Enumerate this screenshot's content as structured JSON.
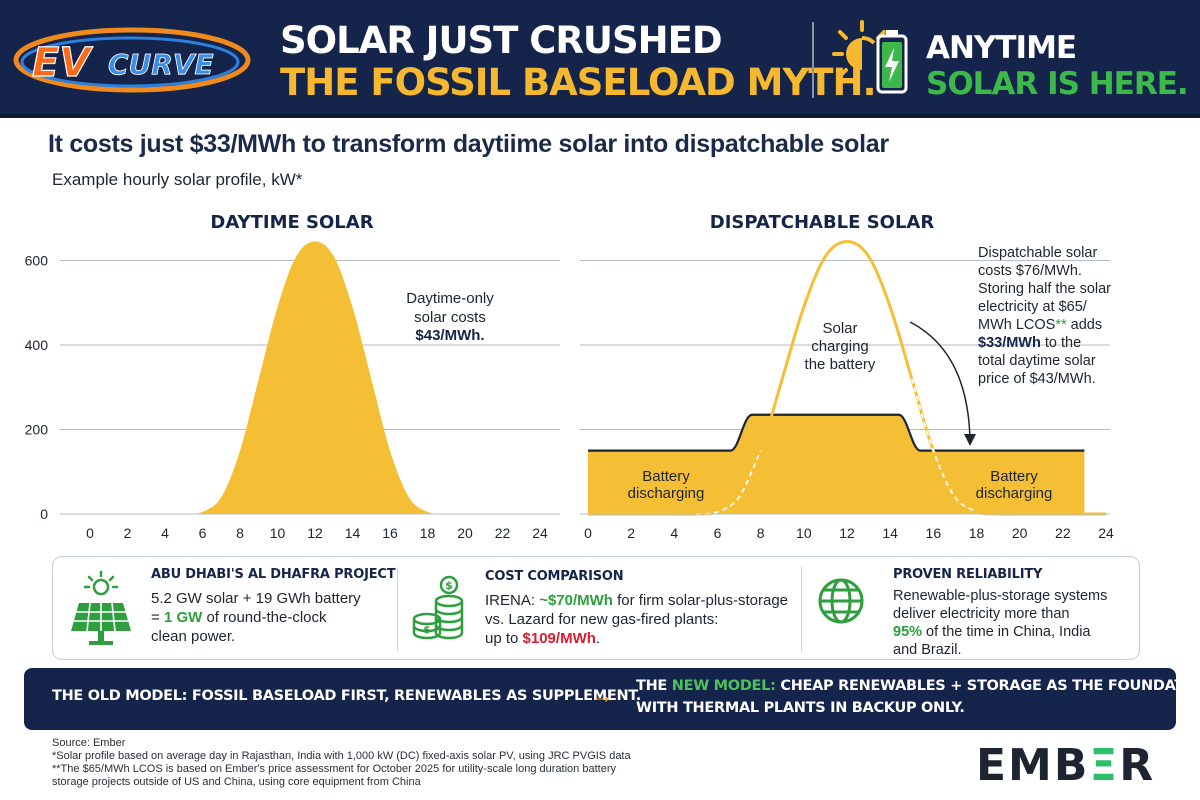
{
  "header": {
    "logo_ev": "EV",
    "logo_curve": "CURVE",
    "headline_line1": "SOLAR JUST CRUSHED",
    "headline_line2": "THE FOSSIL BASELOAD MYTH.",
    "anytime_line1": "ANYTIME",
    "anytime_line2": "SOLAR IS HERE."
  },
  "title": "It costs just $33/MWh to transform daytiime solar into dispatchable solar",
  "subtitle": "Example hourly solar profile, kW*",
  "chart_data": [
    {
      "type": "area",
      "title": "DAYTIME SOLAR",
      "x": [
        0,
        1,
        2,
        3,
        4,
        5,
        6,
        7,
        8,
        9,
        10,
        11,
        12,
        13,
        14,
        15,
        16,
        17,
        18,
        19,
        20,
        21,
        22,
        23,
        24
      ],
      "series": [
        {
          "values": [
            0,
            0,
            0,
            0,
            0,
            0,
            5,
            40,
            150,
            320,
            490,
            610,
            645,
            610,
            490,
            320,
            150,
            40,
            5,
            0,
            0,
            0,
            0,
            0,
            0
          ]
        }
      ],
      "xlim": [
        0,
        24
      ],
      "ylim": [
        0,
        700
      ],
      "yticks": [
        0,
        200,
        400,
        600
      ],
      "xticks": [
        0,
        2,
        4,
        6,
        8,
        10,
        12,
        14,
        16,
        18,
        20,
        22,
        24
      ],
      "grid": "horizontal",
      "annotation": {
        "line1": "Daytime-only",
        "line2": "solar costs",
        "line3": "$43/MWh."
      }
    },
    {
      "type": "area",
      "title": "DISPATCHABLE SOLAR",
      "x": [
        0,
        1,
        2,
        3,
        4,
        5,
        6,
        7,
        8,
        9,
        10,
        11,
        12,
        13,
        14,
        15,
        16,
        17,
        18,
        19,
        20,
        21,
        22,
        23,
        24
      ],
      "series": [
        {
          "values": [
            150,
            150,
            150,
            150,
            150,
            150,
            150,
            150,
            235,
            235,
            235,
            235,
            235,
            235,
            235,
            150,
            150,
            150,
            150,
            150,
            150,
            150,
            150,
            150,
            150
          ]
        },
        {
          "values": [
            0,
            0,
            0,
            0,
            0,
            0,
            5,
            40,
            150,
            320,
            490,
            610,
            645,
            610,
            490,
            320,
            150,
            40,
            5,
            0,
            0,
            0,
            0,
            0,
            0
          ]
        }
      ],
      "xlim": [
        0,
        24
      ],
      "ylim": [
        0,
        700
      ],
      "xticks": [
        0,
        2,
        4,
        6,
        8,
        10,
        12,
        14,
        16,
        18,
        20,
        22,
        24
      ],
      "grid": "horizontal",
      "labels": {
        "battery_left_1": "Battery",
        "battery_left_2": "discharging",
        "battery_right_1": "Battery",
        "battery_right_2": "discharging",
        "charging_1": "Solar",
        "charging_2": "charging",
        "charging_3": "the battery"
      },
      "annotation": {
        "line1": "Dispatchable solar",
        "line2": "costs $76/MWh.",
        "line3": "Storing half the solar",
        "line4": "electricity at $65/",
        "line5a": "MWh LCOS",
        "line5b": "**",
        "line5c": " adds",
        "line6a": "$33/MWh",
        "line6b": " to the",
        "line7": "total daytime solar",
        "line8": "price of $43/MWh."
      }
    }
  ],
  "info": {
    "col1": {
      "title": "ABU DHABI'S AL DHAFRA PROJECT",
      "line1": "5.2 GW solar + 19 GWh battery",
      "line2a": "= ",
      "line2b": "1 GW",
      "line2c": " of round-the-clock",
      "line3": "clean power."
    },
    "col2": {
      "title": "COST COMPARISON",
      "line1a": "IRENA: ",
      "line1b": "~$70/MWh",
      "line1c": " for firm solar-plus-storage",
      "line2": "vs. Lazard for new gas-fired plants:",
      "line3a": "up to ",
      "line3b": "$109/MWh",
      "line3c": "."
    },
    "col3": {
      "title": "PROVEN RELIABILITY",
      "line1": "Renewable-plus-storage systems",
      "line2": "deliver electricity more than",
      "line3a": "95%",
      "line3b": " of the time in China, India",
      "line4": "and Brazil."
    }
  },
  "banner": {
    "old": "THE OLD MODEL: FOSSIL BASELOAD FIRST, RENEWABLES AS SUPPLEMENT.",
    "arrow": "→",
    "new_prefix": "THE ",
    "new_word": "NEW MODEL:",
    "new_rest": " CHEAP RENEWABLES + STORAGE AS THE FOUNDATION,",
    "new_line2": "WITH THERMAL PLANTS IN BACKUP ONLY."
  },
  "footer": {
    "source": "Source: Ember",
    "note1": "*Solar profile based on average day in Rajasthan, India with 1,000 kW (DC) fixed-axis solar PV, using JRC PVGIS data",
    "note2": "**The $65/MWh LCOS is based on Ember's price assessment for October 2025 for utility-scale long duration battery",
    "note3": "storage projects outside of US and China, using core equipment from China",
    "brand_a": "EMB",
    "brand_b": "Ξ",
    "brand_c": "R"
  },
  "colors": {
    "navy": "#15244a",
    "solar_yellow": "#f5bf35",
    "green": "#2e9e3e",
    "red": "#d81e2c"
  }
}
